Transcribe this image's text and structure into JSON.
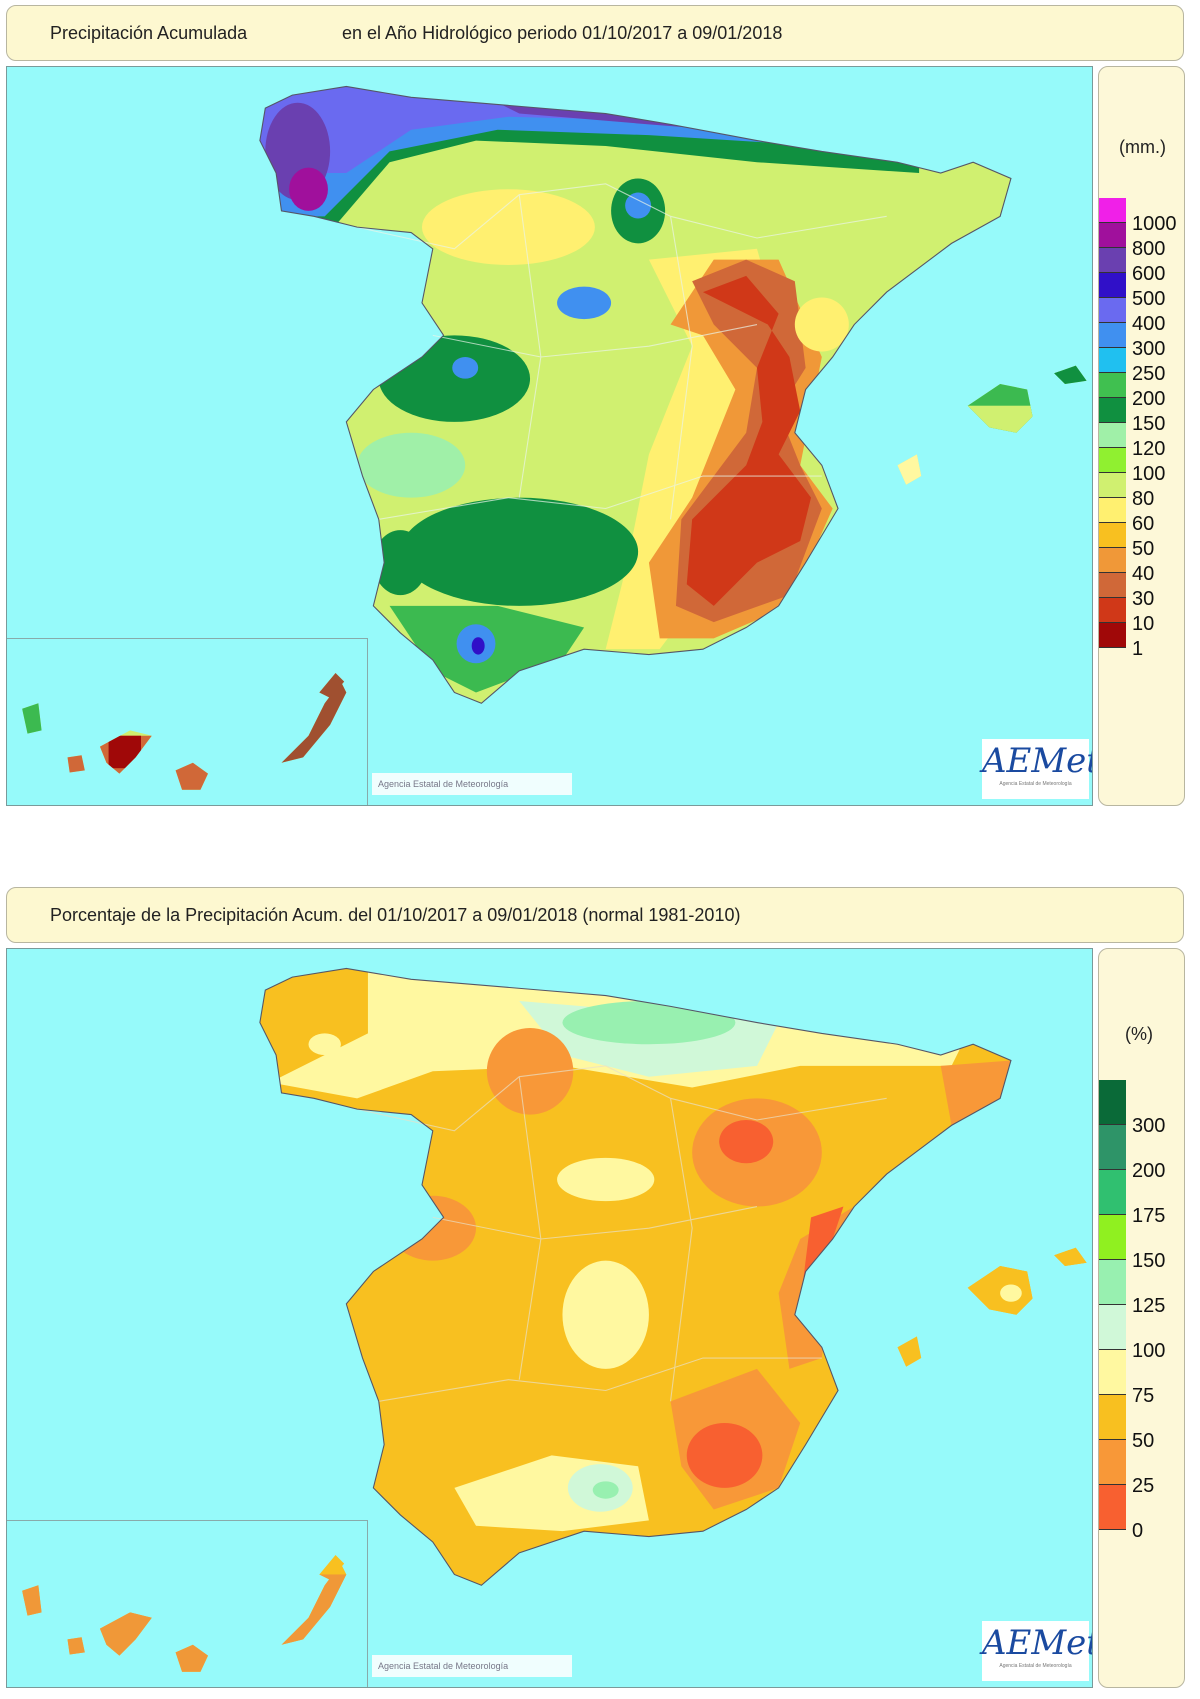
{
  "map1": {
    "title_left": "Precipitación Acumulada",
    "title_right": "en el Año Hidrológico  periodo 01/10/2017 a 09/01/2018",
    "legend_unit": "(mm.)",
    "legend": [
      {
        "label": "1000",
        "color": "#f020e8"
      },
      {
        "label": "800",
        "color": "#a0109c"
      },
      {
        "label": "600",
        "color": "#6a40b0"
      },
      {
        "label": "500",
        "color": "#3010c8"
      },
      {
        "label": "400",
        "color": "#6a6af0"
      },
      {
        "label": "300",
        "color": "#4090f0"
      },
      {
        "label": "250",
        "color": "#20c0f0"
      },
      {
        "label": "200",
        "color": "#40c050"
      },
      {
        "label": "150",
        "color": "#109040"
      },
      {
        "label": "120",
        "color": "#a0f0a8"
      },
      {
        "label": "100",
        "color": "#90f030"
      },
      {
        "label": "80",
        "color": "#d0f070"
      },
      {
        "label": "60",
        "color": "#fff070"
      },
      {
        "label": "50",
        "color": "#f8c020"
      },
      {
        "label": "40",
        "color": "#f09838"
      },
      {
        "label": "30",
        "color": "#d06838"
      },
      {
        "label": "10",
        "color": "#d03818"
      },
      {
        "label": "1",
        "color": "#a00808"
      }
    ]
  },
  "map2": {
    "title": "Porcentaje de la Precipitación Acum. del 01/10/2017 a  09/01/2018  (normal 1981-2010)",
    "legend_unit": "(%)",
    "legend": [
      {
        "label": "300",
        "color": "#0a6a38"
      },
      {
        "label": "200",
        "color": "#2e9468"
      },
      {
        "label": "175",
        "color": "#30c070"
      },
      {
        "label": "150",
        "color": "#90f020"
      },
      {
        "label": "125",
        "color": "#98f0b0"
      },
      {
        "label": "100",
        "color": "#d0f8d8"
      },
      {
        "label": "75",
        "color": "#fff8a0"
      },
      {
        "label": "50",
        "color": "#f8c020"
      },
      {
        "label": "25",
        "color": "#f89838"
      },
      {
        "label": "0",
        "color": "#f86030"
      }
    ]
  },
  "copyright": "Agencia Estatal de Meteorología",
  "logo": {
    "name": "AEMet",
    "sub": "Agencia Estatal de Meteorología"
  },
  "colors": {
    "sea": "#96fafa",
    "panel": "#fdf8d0"
  }
}
